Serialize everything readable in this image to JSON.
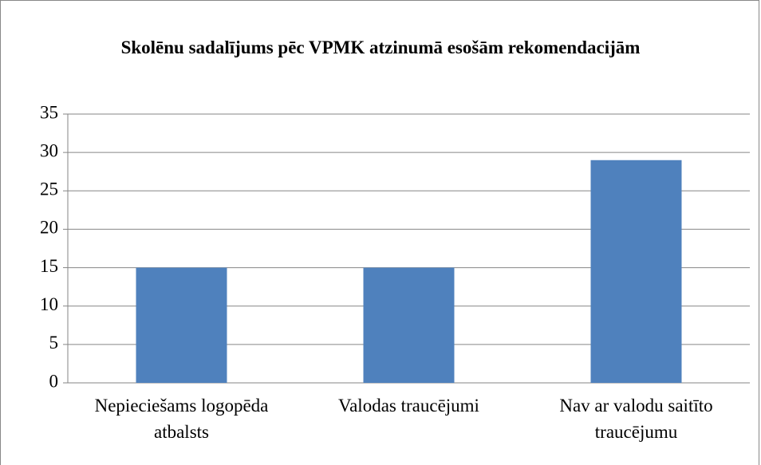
{
  "chart_data": {
    "type": "bar",
    "title": "Skolēnu sadalījums pēc VPMK atzinumā esošām rekomendacijām",
    "categories": [
      "Nepieciešams logopēda atbalsts",
      "Valodas traucējumi",
      "Nav ar valodu saitīto traucējumu"
    ],
    "values": [
      15,
      15,
      29
    ],
    "color": "#4f81bd",
    "ylim": [
      0,
      35
    ],
    "yticks": [
      0,
      5,
      10,
      15,
      20,
      25,
      30,
      35
    ],
    "grid": true
  }
}
